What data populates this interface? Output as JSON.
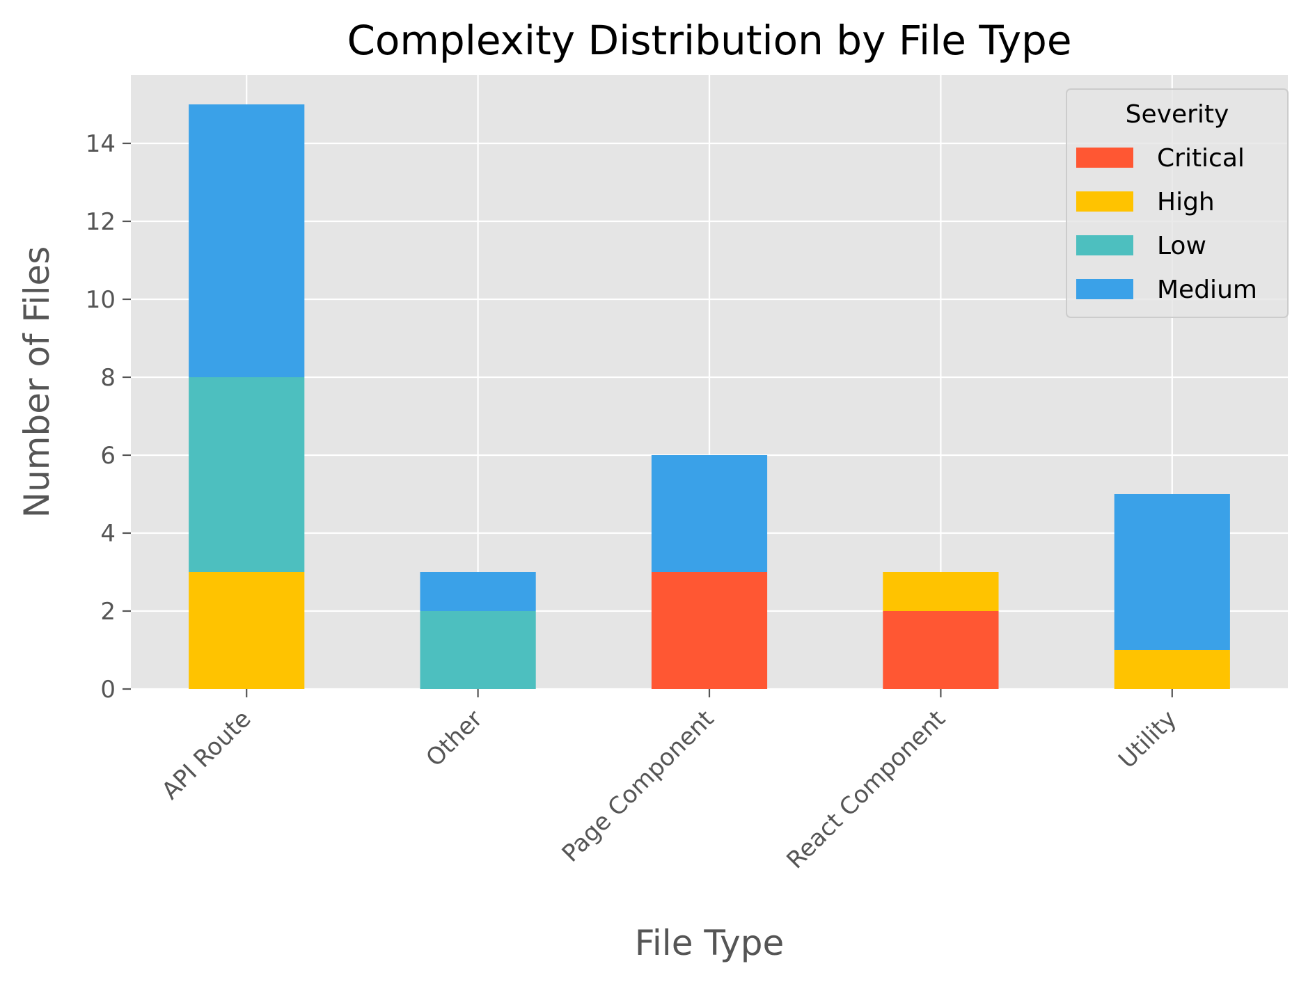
{
  "chart_data": {
    "type": "bar",
    "stacked": true,
    "title": "Complexity Distribution by File Type",
    "xlabel": "File Type",
    "ylabel": "Number of Files",
    "categories": [
      "API Route",
      "Other",
      "Page Component",
      "React Component",
      "Utility"
    ],
    "series": [
      {
        "name": "Critical",
        "color": "#FF5733",
        "values": [
          0,
          0,
          3,
          2,
          0
        ]
      },
      {
        "name": "High",
        "color": "#FFC300",
        "values": [
          3,
          0,
          0,
          1,
          1
        ]
      },
      {
        "name": "Low",
        "color": "#4DBFBF",
        "values": [
          5,
          2,
          0,
          0,
          0
        ]
      },
      {
        "name": "Medium",
        "color": "#3AA1E8",
        "values": [
          7,
          1,
          3,
          0,
          4
        ]
      }
    ],
    "ylim": [
      0,
      15.75
    ],
    "yticks": [
      0,
      2,
      4,
      6,
      8,
      10,
      12,
      14
    ],
    "legend": {
      "title": "Severity",
      "position": "top-right"
    },
    "grid": true,
    "background": "#E5E5E5",
    "grid_color": "#FFFFFF"
  }
}
